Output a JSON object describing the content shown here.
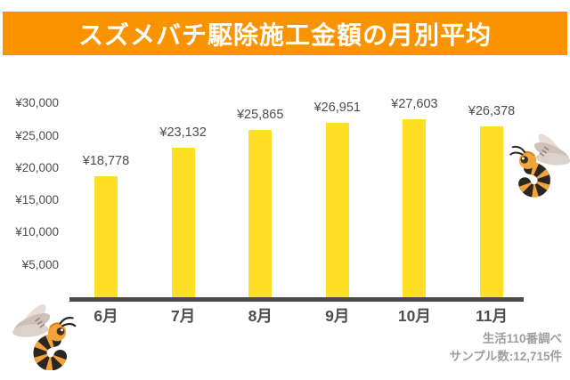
{
  "header": {
    "title": "スズメバチ駆除施工金額の月別平均",
    "bg_color": "#F99400",
    "text_color": "#FFFFFF"
  },
  "chart_data": {
    "type": "bar",
    "title": "スズメバチ駆除施工金額の月別平均",
    "categories": [
      "6月",
      "7月",
      "8月",
      "9月",
      "10月",
      "11月"
    ],
    "values": [
      18778,
      23132,
      25865,
      26951,
      27603,
      26378
    ],
    "value_labels": [
      "¥18,778",
      "¥23,132",
      "¥25,865",
      "¥26,951",
      "¥27,603",
      "¥26,378"
    ],
    "y_ticks": [
      "¥30,000",
      "¥25,000",
      "¥20,000",
      "¥15,000",
      "¥10,000",
      "¥5,000"
    ],
    "y_tick_values": [
      30000,
      25000,
      20000,
      15000,
      10000,
      5000
    ],
    "ylim": [
      0,
      30000
    ],
    "xlabel": "",
    "ylabel": "",
    "grid": false,
    "legend": false,
    "bar_color": "#FFDE26",
    "axis_color": "#4A4A4A",
    "label_color": "#4D4D4D"
  },
  "footer": {
    "source": "生活110番調べ",
    "sample": "サンプル数:12,715件"
  },
  "decorations": {
    "wasp_icon_left": "wasp-icon",
    "wasp_icon_right": "wasp-icon",
    "wasp_body_color": "#2B2620",
    "wasp_stripe_color": "#F2A33C",
    "wing_colors": [
      "#E6DDD7",
      "#CDC0B8",
      "#DDD2CB"
    ]
  }
}
